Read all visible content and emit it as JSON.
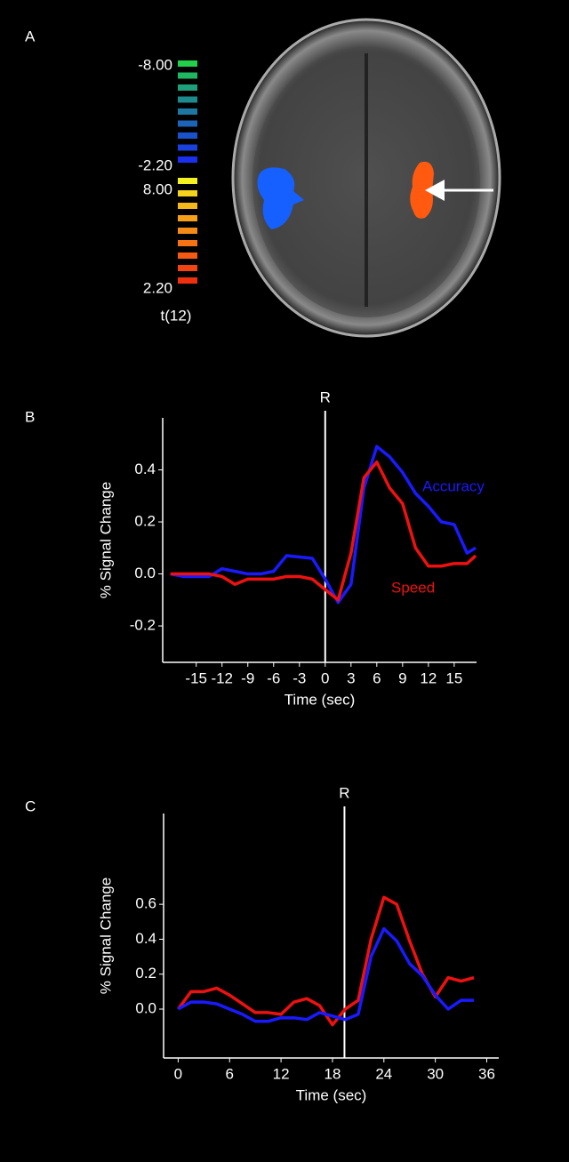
{
  "chart_data": [
    {
      "type": "image",
      "panel_label": "A",
      "colorbar_labels": [
        "-8.00",
        "-2.20",
        "8.00",
        "2.20"
      ],
      "colorbar_title": "t(12)",
      "colorbar_colors": [
        "#22d04a",
        "#1fb861",
        "#1ea07a",
        "#1d8a8e",
        "#1c78a2",
        "#1b64b8",
        "#1a52cc",
        "#1a40dd",
        "#1a30ee",
        "#f5f020",
        "#f5d21c",
        "#f5b81a",
        "#f5a018",
        "#f58a16",
        "#f57214",
        "#f55a12",
        "#f24410",
        "#ee300e"
      ]
    },
    {
      "type": "line",
      "panel_label": "B",
      "y_label": "% Signal Change",
      "x_label": "Time (sec)",
      "annotation": "R",
      "annotation_x": 0,
      "x": [
        -18,
        -16.5,
        -15,
        -13.5,
        -12,
        -10.5,
        -9,
        -7.5,
        -6,
        -4.5,
        -3,
        -1.5,
        0,
        1.5,
        3,
        4.5,
        6,
        7.5,
        9,
        10.5,
        12,
        13.5,
        15,
        16.5,
        17.5
      ],
      "series": [
        {
          "name": "Accuracy",
          "color": "#1a1aff",
          "values": [
            0,
            -0.01,
            -0.01,
            -0.01,
            0.02,
            0.01,
            0,
            0,
            0.01,
            0.07,
            0.065,
            0.06,
            -0.02,
            -0.11,
            -0.04,
            0.33,
            0.49,
            0.45,
            0.39,
            0.31,
            0.26,
            0.2,
            0.19,
            0.08,
            0.1
          ]
        },
        {
          "name": "Speed",
          "color": "#ee1111",
          "values": [
            0,
            0,
            0,
            0,
            -0.01,
            -0.04,
            -0.02,
            -0.02,
            -0.02,
            -0.01,
            -0.01,
            -0.02,
            -0.06,
            -0.1,
            0.08,
            0.37,
            0.43,
            0.33,
            0.27,
            0.1,
            0.03,
            0.03,
            0.04,
            0.04,
            0.07
          ]
        }
      ],
      "xlim": [
        -18.9,
        17.6
      ],
      "xticks": [
        -15,
        -12,
        -9,
        -6,
        -3,
        0,
        3,
        6,
        9,
        12,
        15
      ],
      "ylim": [
        -0.34,
        0.6
      ],
      "yticks": [
        -0.2,
        {
          "value": 0,
          "label": "0.0"
        },
        0.2,
        0.4
      ]
    },
    {
      "type": "line",
      "panel_label": "C",
      "y_label": "% Signal Change",
      "x_label": "Time (sec)",
      "annotation": "R",
      "annotation_x": 19.4,
      "x": [
        0,
        1.5,
        3,
        4.5,
        6,
        7.5,
        9,
        10.5,
        12,
        13.5,
        15,
        16.5,
        18,
        19.5,
        21,
        22.5,
        24,
        25.5,
        27,
        28.5,
        30,
        31.5,
        33,
        34.5
      ],
      "series": [
        {
          "color": "#ee1111",
          "values": [
            0,
            0.1,
            0.1,
            0.12,
            0.08,
            0.03,
            -0.02,
            -0.02,
            -0.03,
            0.04,
            0.06,
            0.02,
            -0.09,
            0,
            0.05,
            0.4,
            0.64,
            0.6,
            0.39,
            0.2,
            0.07,
            0.18,
            0.16,
            0.18
          ]
        },
        {
          "color": "#1a1aff",
          "values": [
            0,
            0.04,
            0.04,
            0.03,
            0,
            -0.03,
            -0.07,
            -0.07,
            -0.05,
            -0.05,
            -0.06,
            -0.02,
            -0.04,
            -0.06,
            -0.03,
            0.3,
            0.46,
            0.39,
            0.26,
            0.19,
            0.08,
            0,
            0.05,
            0.05
          ]
        }
      ],
      "xlim": [
        -1.7,
        37.4
      ],
      "xticks": [
        0,
        6,
        12,
        18,
        24,
        30,
        36
      ],
      "ylim": [
        -0.28,
        1.12
      ],
      "yticks": [
        {
          "value": 0,
          "label": "0.0"
        },
        0.2,
        0.4,
        0.6
      ]
    }
  ]
}
